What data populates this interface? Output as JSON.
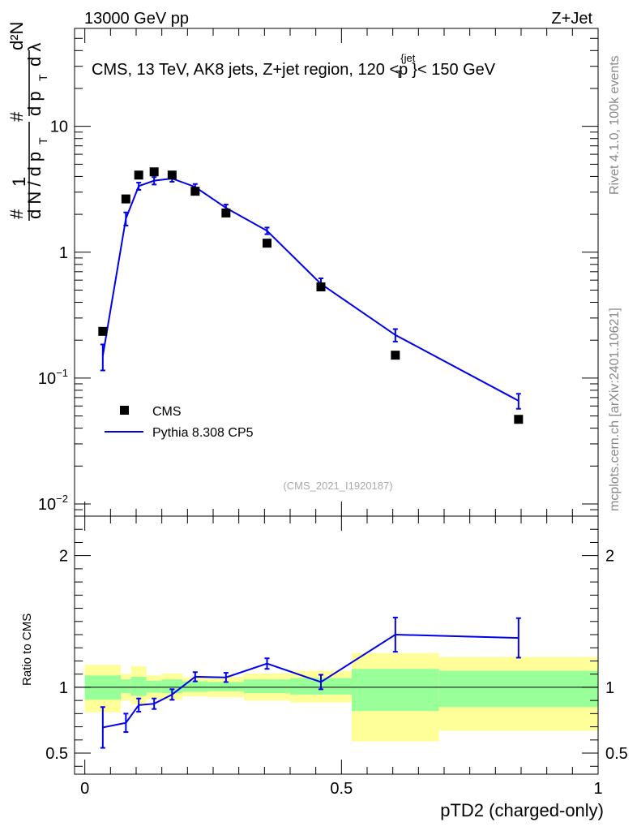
{
  "header": {
    "left": "13000 GeV pp",
    "right": "Z+Jet"
  },
  "side_labels": {
    "rivet": "Rivet 4.1.0,  100k events",
    "mcplots": "mcplots.cern.ch [arXiv:2401.10621]"
  },
  "chart_data": [
    {
      "type": "scatter",
      "title": "CMS, 13 TeV, AK8 jets, Z+jet region, 120 <p",
      "title_sup": "{jet",
      "title_sub": "T",
      "title_tail": "}< 150 GeV",
      "ylabel": {
        "n": "#",
        "one": "1",
        "dN": "d N / d p",
        "t": "T",
        "num": "d²N",
        "dp": "d p",
        "lam": "d λ"
      },
      "yscale": "log",
      "ylim": [
        0.008,
        60
      ],
      "xlim": [
        -0.02,
        1.0
      ],
      "yticks": [
        {
          "value": 0.01,
          "base": "10",
          "exp": "−2"
        },
        {
          "value": 0.1,
          "base": "10",
          "exp": "−1"
        },
        {
          "value": 1,
          "label": "1"
        },
        {
          "value": 10,
          "label": "10"
        }
      ],
      "watermark": "(CMS_2021_I1920187)",
      "legend": {
        "position": "lower-left",
        "entries": [
          {
            "label": "CMS",
            "marker": "square",
            "color": "#000000"
          },
          {
            "label": "Pythia 8.308 CP5",
            "marker": "line",
            "color": "#0000ee"
          }
        ]
      },
      "series": [
        {
          "name": "CMS",
          "x": [
            0.035,
            0.08,
            0.105,
            0.135,
            0.17,
            0.215,
            0.275,
            0.355,
            0.46,
            0.605,
            0.845
          ],
          "y": [
            0.235,
            2.65,
            4.1,
            4.35,
            4.1,
            3.05,
            2.05,
            1.18,
            0.53,
            0.152,
            0.047
          ]
        },
        {
          "name": "Pythia 8.308 CP5",
          "x": [
            0.035,
            0.08,
            0.105,
            0.135,
            0.17,
            0.215,
            0.275,
            0.355,
            0.46,
            0.605,
            0.845
          ],
          "y": [
            0.15,
            1.85,
            3.35,
            3.7,
            3.85,
            3.3,
            2.25,
            1.48,
            0.56,
            0.22,
            0.066
          ],
          "err_lo": [
            0.035,
            0.22,
            0.22,
            0.25,
            0.22,
            0.18,
            0.14,
            0.09,
            0.06,
            0.025,
            0.009
          ],
          "err_hi": [
            0.035,
            0.22,
            0.22,
            0.25,
            0.22,
            0.18,
            0.14,
            0.09,
            0.06,
            0.025,
            0.009
          ]
        }
      ]
    },
    {
      "type": "line",
      "ylabel": "Ratio to CMS",
      "xlabel": "pTD2 (charged-only)",
      "xlim": [
        -0.02,
        1.0
      ],
      "ylim": [
        0.34,
        2.3
      ],
      "yticks": [
        {
          "value": 0.5,
          "label": "0.5"
        },
        {
          "value": 1,
          "label": "1"
        },
        {
          "value": 2,
          "label": "2"
        }
      ],
      "xticks": [
        {
          "value": 0,
          "label": "0"
        },
        {
          "value": 0.5,
          "label": "0.5"
        },
        {
          "value": 1,
          "label": "1"
        }
      ],
      "reference": 1,
      "bands": [
        {
          "x0": 0.0,
          "x1": 0.07,
          "y1_lo": 0.905,
          "y1_hi": 1.09,
          "y2_lo": 0.81,
          "y2_hi": 1.17
        },
        {
          "x0": 0.07,
          "x1": 0.09,
          "y1_lo": 0.955,
          "y1_hi": 1.06,
          "y2_lo": 0.9,
          "y2_hi": 1.1
        },
        {
          "x0": 0.09,
          "x1": 0.12,
          "y1_lo": 0.935,
          "y1_hi": 1.08,
          "y2_lo": 0.87,
          "y2_hi": 1.16
        },
        {
          "x0": 0.12,
          "x1": 0.15,
          "y1_lo": 0.96,
          "y1_hi": 1.05,
          "y2_lo": 0.91,
          "y2_hi": 1.09
        },
        {
          "x0": 0.15,
          "x1": 0.19,
          "y1_lo": 0.955,
          "y1_hi": 1.06,
          "y2_lo": 0.905,
          "y2_hi": 1.105
        },
        {
          "x0": 0.19,
          "x1": 0.24,
          "y1_lo": 0.965,
          "y1_hi": 1.045,
          "y2_lo": 0.93,
          "y2_hi": 1.075
        },
        {
          "x0": 0.24,
          "x1": 0.31,
          "y1_lo": 0.97,
          "y1_hi": 1.04,
          "y2_lo": 0.925,
          "y2_hi": 1.08
        },
        {
          "x0": 0.31,
          "x1": 0.4,
          "y1_lo": 0.955,
          "y1_hi": 1.06,
          "y2_lo": 0.9,
          "y2_hi": 1.105
        },
        {
          "x0": 0.4,
          "x1": 0.52,
          "y1_lo": 0.945,
          "y1_hi": 1.07,
          "y2_lo": 0.885,
          "y2_hi": 1.125
        },
        {
          "x0": 0.52,
          "x1": 0.69,
          "y1_lo": 0.82,
          "y1_hi": 1.14,
          "y2_lo": 0.59,
          "y2_hi": 1.26
        },
        {
          "x0": 0.69,
          "x1": 1.0,
          "y1_lo": 0.85,
          "y1_hi": 1.125,
          "y2_lo": 0.67,
          "y2_hi": 1.23
        }
      ],
      "series": [
        {
          "name": "Pythia 8.308 CP5",
          "x": [
            0.035,
            0.08,
            0.105,
            0.135,
            0.17,
            0.215,
            0.275,
            0.355,
            0.46,
            0.605,
            0.845
          ],
          "y": [
            0.695,
            0.73,
            0.865,
            0.875,
            0.945,
            1.08,
            1.075,
            1.18,
            1.04,
            1.4,
            1.375
          ],
          "err_lo": [
            0.155,
            0.07,
            0.05,
            0.04,
            0.04,
            0.035,
            0.035,
            0.04,
            0.055,
            0.13,
            0.15
          ],
          "err_hi": [
            0.155,
            0.07,
            0.05,
            0.04,
            0.04,
            0.035,
            0.035,
            0.04,
            0.055,
            0.13,
            0.15
          ]
        }
      ]
    }
  ]
}
